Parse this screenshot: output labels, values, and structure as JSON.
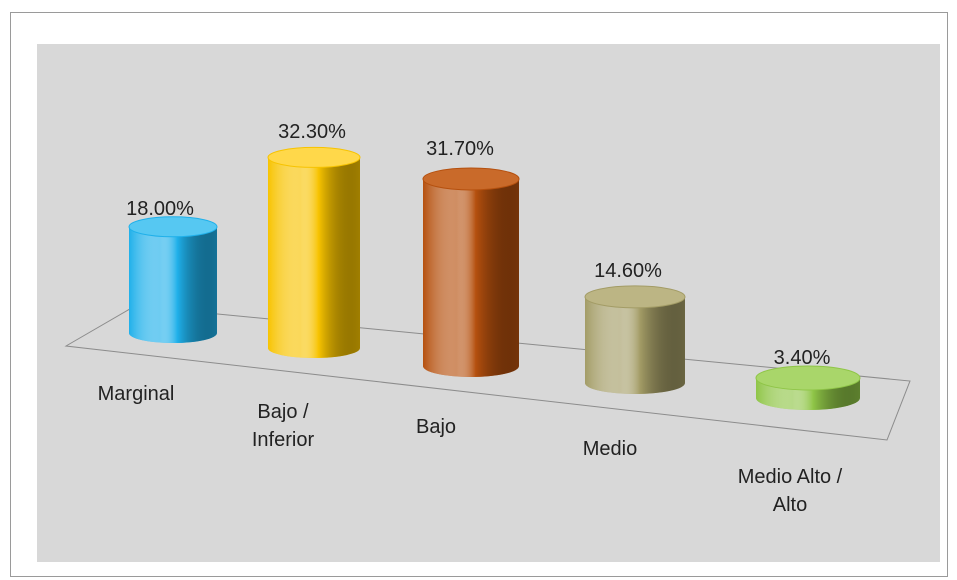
{
  "chart_data": {
    "type": "bar",
    "style": "3d-cylinder",
    "categories": [
      "Marginal",
      "Bajo / Inferior",
      "Bajo",
      "Medio",
      "Medio Alto / Alto"
    ],
    "category_lines": [
      [
        "Marginal"
      ],
      [
        "Bajo /",
        "Inferior"
      ],
      [
        "Bajo"
      ],
      [
        "Medio"
      ],
      [
        "Medio Alto /",
        "Alto"
      ]
    ],
    "values": [
      18.0,
      32.3,
      31.7,
      14.6,
      3.4
    ],
    "value_labels": [
      "18.00%",
      "32.30%",
      "31.70%",
      "14.60%",
      "3.40%"
    ],
    "unit": "%",
    "colors": [
      "#1fb0ea",
      "#f7c300",
      "#b5500e",
      "#a39c66",
      "#8fc547"
    ],
    "top_colors": [
      "#56c8f2",
      "#ffd84a",
      "#c96a2a",
      "#bcb584",
      "#a9d66a"
    ],
    "ylim": [
      0,
      35
    ],
    "grid": false,
    "legend": "none"
  }
}
